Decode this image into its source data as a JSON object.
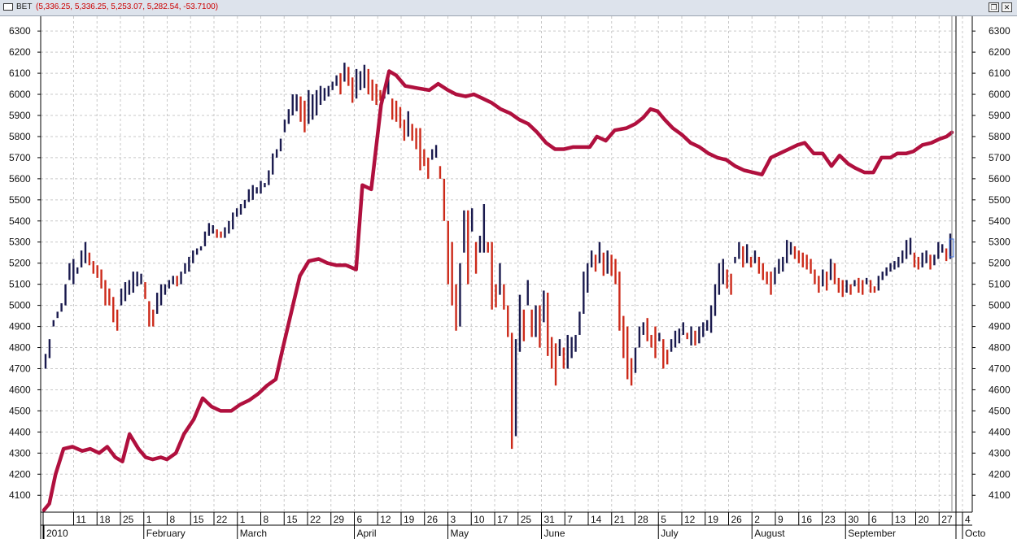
{
  "window": {
    "symbol": "BET",
    "ohlc_readout": "(5,336.25, 5,336.25, 5,253.07, 5,282.54, -53.7100)",
    "restore_glyph": "❐",
    "close_glyph": "✕"
  },
  "colors": {
    "up_bar": "#1a1a4e",
    "down_bar": "#cc2a1a",
    "average_line": "#b0103e",
    "grid": "#c8c8c8"
  },
  "chart_data": {
    "type": "ohlc_bar_with_line",
    "y_ticks": [
      4100,
      4200,
      4300,
      4400,
      4500,
      4600,
      4700,
      4800,
      4900,
      5000,
      5100,
      5200,
      5300,
      5400,
      5500,
      5600,
      5700,
      5800,
      5900,
      6000,
      6100,
      6200,
      6300
    ],
    "ylim": [
      4020,
      6370
    ],
    "grid": true,
    "x_ticks": [
      "11",
      "18",
      "25",
      "1",
      "8",
      "15",
      "22",
      "1",
      "8",
      "15",
      "22",
      "29",
      "6",
      "12",
      "19",
      "26",
      "3",
      "10",
      "17",
      "25",
      "31",
      "7",
      "14",
      "21",
      "28",
      "5",
      "12",
      "19",
      "26",
      "2",
      "9",
      "16",
      "23",
      "30",
      "6",
      "13",
      "20",
      "27",
      "4"
    ],
    "months": [
      "2010",
      "February",
      "March",
      "April",
      "May",
      "June",
      "July",
      "August",
      "September",
      "Octo"
    ],
    "bars": [
      [
        4700,
        4770
      ],
      [
        4750,
        4840
      ],
      [
        4900,
        4930
      ],
      [
        4940,
        4970
      ],
      [
        4970,
        5010
      ],
      [
        5000,
        5100
      ],
      [
        5120,
        5200
      ],
      [
        5100,
        5220
      ],
      [
        5150,
        5180
      ],
      [
        5180,
        5260
      ],
      [
        5200,
        5300
      ],
      [
        5190,
        5250
      ],
      [
        5150,
        5210
      ],
      [
        5130,
        5190
      ],
      [
        5080,
        5170
      ],
      [
        5000,
        5120
      ],
      [
        5000,
        5080
      ],
      [
        4920,
        5040
      ],
      [
        4880,
        4980
      ],
      [
        5000,
        5080
      ],
      [
        5020,
        5110
      ],
      [
        5050,
        5120
      ],
      [
        5060,
        5160
      ],
      [
        5090,
        5160
      ],
      [
        5100,
        5150
      ],
      [
        5030,
        5110
      ],
      [
        4900,
        5020
      ],
      [
        4900,
        4980
      ],
      [
        4960,
        5060
      ],
      [
        5000,
        5100
      ],
      [
        5050,
        5100
      ],
      [
        5080,
        5120
      ],
      [
        5100,
        5140
      ],
      [
        5090,
        5140
      ],
      [
        5100,
        5160
      ],
      [
        5150,
        5200
      ],
      [
        5160,
        5230
      ],
      [
        5200,
        5260
      ],
      [
        5240,
        5270
      ],
      [
        5260,
        5280
      ],
      [
        5280,
        5350
      ],
      [
        5330,
        5390
      ],
      [
        5340,
        5380
      ],
      [
        5320,
        5360
      ],
      [
        5320,
        5350
      ],
      [
        5320,
        5370
      ],
      [
        5340,
        5400
      ],
      [
        5360,
        5440
      ],
      [
        5420,
        5460
      ],
      [
        5430,
        5480
      ],
      [
        5460,
        5500
      ],
      [
        5490,
        5550
      ],
      [
        5500,
        5570
      ],
      [
        5530,
        5560
      ],
      [
        5530,
        5590
      ],
      [
        5560,
        5580
      ],
      [
        5570,
        5640
      ],
      [
        5620,
        5720
      ],
      [
        5700,
        5740
      ],
      [
        5730,
        5790
      ],
      [
        5820,
        5880
      ],
      [
        5860,
        5930
      ],
      [
        5900,
        6000
      ],
      [
        5920,
        6000
      ],
      [
        5870,
        5990
      ],
      [
        5820,
        5970
      ],
      [
        5860,
        6020
      ],
      [
        5880,
        6000
      ],
      [
        5900,
        6020
      ],
      [
        5950,
        6040
      ],
      [
        5970,
        6030
      ],
      [
        5990,
        6040
      ],
      [
        6020,
        6060
      ],
      [
        6040,
        6090
      ],
      [
        6000,
        6100
      ],
      [
        6060,
        6150
      ],
      [
        6040,
        6130
      ],
      [
        5960,
        6080
      ],
      [
        5980,
        6120
      ],
      [
        6020,
        6110
      ],
      [
        6030,
        6140
      ],
      [
        6000,
        6120
      ],
      [
        5970,
        6070
      ],
      [
        5950,
        6050
      ],
      [
        5970,
        6020
      ],
      [
        5980,
        6020
      ],
      [
        6000,
        6110
      ],
      [
        5880,
        5980
      ],
      [
        5870,
        5970
      ],
      [
        5840,
        5940
      ],
      [
        5780,
        5880
      ],
      [
        5800,
        5920
      ],
      [
        5780,
        5860
      ],
      [
        5740,
        5840
      ],
      [
        5640,
        5840
      ],
      [
        5660,
        5740
      ],
      [
        5600,
        5700
      ],
      [
        5690,
        5740
      ],
      [
        5700,
        5760
      ],
      [
        5600,
        5660
      ],
      [
        5400,
        5600
      ],
      [
        5100,
        5400
      ],
      [
        5000,
        5300
      ],
      [
        4880,
        5100
      ],
      [
        4900,
        5200
      ],
      [
        5250,
        5450
      ],
      [
        5100,
        5450
      ],
      [
        5350,
        5460
      ],
      [
        5150,
        5300
      ],
      [
        5250,
        5330
      ],
      [
        5250,
        5480
      ],
      [
        5250,
        5300
      ],
      [
        4980,
        5300
      ],
      [
        4990,
        5100
      ],
      [
        5050,
        5200
      ],
      [
        4980,
        5100
      ],
      [
        4850,
        5000
      ],
      [
        4320,
        4870
      ],
      [
        4380,
        4840
      ],
      [
        4780,
        5050
      ],
      [
        4830,
        4980
      ],
      [
        5000,
        5120
      ],
      [
        4850,
        4980
      ],
      [
        4850,
        5000
      ],
      [
        4800,
        5000
      ],
      [
        4920,
        5070
      ],
      [
        4760,
        5060
      ],
      [
        4700,
        4850
      ],
      [
        4620,
        4820
      ],
      [
        4760,
        4840
      ],
      [
        4700,
        4800
      ],
      [
        4700,
        4860
      ],
      [
        4750,
        4850
      ],
      [
        4780,
        4860
      ],
      [
        4860,
        4970
      ],
      [
        4960,
        5160
      ],
      [
        5060,
        5200
      ],
      [
        5180,
        5260
      ],
      [
        5160,
        5240
      ],
      [
        5200,
        5300
      ],
      [
        5140,
        5250
      ],
      [
        5150,
        5260
      ],
      [
        5140,
        5240
      ],
      [
        5100,
        5220
      ],
      [
        4880,
        5160
      ],
      [
        4750,
        4950
      ],
      [
        4650,
        4900
      ],
      [
        4620,
        4750
      ],
      [
        4680,
        4800
      ],
      [
        4800,
        4900
      ],
      [
        4860,
        4920
      ],
      [
        4830,
        4940
      ],
      [
        4800,
        4860
      ],
      [
        4750,
        4900
      ],
      [
        4830,
        4870
      ],
      [
        4700,
        4840
      ],
      [
        4720,
        4790
      ],
      [
        4780,
        4840
      ],
      [
        4800,
        4880
      ],
      [
        4820,
        4890
      ],
      [
        4860,
        4920
      ],
      [
        4840,
        4870
      ],
      [
        4810,
        4900
      ],
      [
        4810,
        4880
      ],
      [
        4820,
        4900
      ],
      [
        4850,
        4920
      ],
      [
        4880,
        4930
      ],
      [
        4870,
        5000
      ],
      [
        4950,
        5100
      ],
      [
        5050,
        5200
      ],
      [
        5100,
        5220
      ],
      [
        5080,
        5170
      ],
      [
        5050,
        5150
      ],
      [
        5200,
        5230
      ],
      [
        5220,
        5300
      ],
      [
        5180,
        5280
      ],
      [
        5200,
        5290
      ],
      [
        5180,
        5230
      ],
      [
        5200,
        5260
      ],
      [
        5150,
        5230
      ],
      [
        5120,
        5200
      ],
      [
        5100,
        5160
      ],
      [
        5050,
        5160
      ],
      [
        5100,
        5180
      ],
      [
        5150,
        5220
      ],
      [
        5160,
        5230
      ],
      [
        5200,
        5310
      ],
      [
        5240,
        5300
      ],
      [
        5220,
        5280
      ],
      [
        5200,
        5260
      ],
      [
        5180,
        5250
      ],
      [
        5170,
        5240
      ],
      [
        5150,
        5220
      ],
      [
        5100,
        5170
      ],
      [
        5060,
        5140
      ],
      [
        5090,
        5170
      ],
      [
        5070,
        5160
      ],
      [
        5120,
        5220
      ],
      [
        5100,
        5200
      ],
      [
        5060,
        5130
      ],
      [
        5040,
        5120
      ],
      [
        5060,
        5120
      ],
      [
        5050,
        5100
      ],
      [
        5090,
        5120
      ],
      [
        5060,
        5130
      ],
      [
        5050,
        5120
      ],
      [
        5100,
        5130
      ],
      [
        5060,
        5120
      ],
      [
        5060,
        5090
      ],
      [
        5070,
        5140
      ],
      [
        5120,
        5160
      ],
      [
        5140,
        5180
      ],
      [
        5160,
        5200
      ],
      [
        5170,
        5210
      ],
      [
        5180,
        5230
      ],
      [
        5200,
        5260
      ],
      [
        5220,
        5310
      ],
      [
        5240,
        5320
      ],
      [
        5180,
        5250
      ],
      [
        5170,
        5230
      ],
      [
        5180,
        5250
      ],
      [
        5200,
        5260
      ],
      [
        5170,
        5240
      ],
      [
        5190,
        5240
      ],
      [
        5220,
        5300
      ],
      [
        5250,
        5290
      ],
      [
        5210,
        5270
      ],
      [
        5220,
        5340
      ]
    ],
    "line": [
      [
        0,
        4030
      ],
      [
        0.6,
        4060
      ],
      [
        1.3,
        4200
      ],
      [
        2.2,
        4320
      ],
      [
        3.2,
        4330
      ],
      [
        4.3,
        4310
      ],
      [
        5.2,
        4320
      ],
      [
        6.2,
        4300
      ],
      [
        7.1,
        4330
      ],
      [
        8,
        4280
      ],
      [
        8.8,
        4260
      ],
      [
        9.6,
        4390
      ],
      [
        10.6,
        4320
      ],
      [
        11.4,
        4280
      ],
      [
        12.2,
        4270
      ],
      [
        13.1,
        4280
      ],
      [
        13.8,
        4270
      ],
      [
        14.8,
        4300
      ],
      [
        15.7,
        4390
      ],
      [
        16.8,
        4460
      ],
      [
        17.8,
        4560
      ],
      [
        18.8,
        4520
      ],
      [
        19.8,
        4500
      ],
      [
        21,
        4500
      ],
      [
        22,
        4530
      ],
      [
        23,
        4550
      ],
      [
        24,
        4580
      ],
      [
        25,
        4620
      ],
      [
        26,
        4650
      ],
      [
        26.8,
        4800
      ],
      [
        27.8,
        4980
      ],
      [
        28.7,
        5140
      ],
      [
        29.7,
        5210
      ],
      [
        30.8,
        5220
      ],
      [
        31.8,
        5200
      ],
      [
        32.8,
        5190
      ],
      [
        33.9,
        5190
      ],
      [
        35,
        5170
      ],
      [
        35.7,
        5570
      ],
      [
        36.7,
        5550
      ],
      [
        37.8,
        5950
      ],
      [
        38.7,
        6110
      ],
      [
        39.5,
        6090
      ],
      [
        40.5,
        6040
      ],
      [
        41.8,
        6030
      ],
      [
        43.2,
        6020
      ],
      [
        44.2,
        6050
      ],
      [
        45.3,
        6020
      ],
      [
        46.2,
        6000
      ],
      [
        47.3,
        5990
      ],
      [
        48.2,
        6000
      ],
      [
        49.2,
        5980
      ],
      [
        50.2,
        5960
      ],
      [
        51.2,
        5930
      ],
      [
        52.3,
        5910
      ],
      [
        53.3,
        5880
      ],
      [
        54.3,
        5860
      ],
      [
        55.3,
        5820
      ],
      [
        56.3,
        5770
      ],
      [
        57.3,
        5740
      ],
      [
        58.3,
        5740
      ],
      [
        59.3,
        5750
      ],
      [
        60.2,
        5750
      ],
      [
        61.2,
        5750
      ],
      [
        62,
        5800
      ],
      [
        63,
        5780
      ],
      [
        64,
        5830
      ],
      [
        65.3,
        5840
      ],
      [
        66.3,
        5860
      ],
      [
        67.2,
        5890
      ],
      [
        68,
        5930
      ],
      [
        68.8,
        5920
      ],
      [
        69.6,
        5880
      ],
      [
        70.5,
        5840
      ],
      [
        71.5,
        5810
      ],
      [
        72.5,
        5770
      ],
      [
        73.5,
        5750
      ],
      [
        74.5,
        5720
      ],
      [
        75.5,
        5700
      ],
      [
        76.5,
        5690
      ],
      [
        77.5,
        5660
      ],
      [
        78.5,
        5640
      ],
      [
        79.5,
        5630
      ],
      [
        80.5,
        5620
      ],
      [
        81.5,
        5700
      ],
      [
        82.5,
        5720
      ],
      [
        83.5,
        5740
      ],
      [
        84.5,
        5760
      ],
      [
        85.3,
        5770
      ],
      [
        86.3,
        5720
      ],
      [
        87.3,
        5720
      ],
      [
        88.3,
        5660
      ],
      [
        89.2,
        5710
      ],
      [
        90.2,
        5670
      ],
      [
        91,
        5650
      ],
      [
        92,
        5630
      ],
      [
        93,
        5630
      ],
      [
        93.9,
        5700
      ],
      [
        94.9,
        5700
      ],
      [
        95.7,
        5720
      ],
      [
        96.7,
        5720
      ],
      [
        97.5,
        5730
      ],
      [
        98.5,
        5760
      ],
      [
        99.5,
        5770
      ],
      [
        100.5,
        5790
      ],
      [
        101.2,
        5800
      ],
      [
        101.8,
        5820
      ]
    ]
  }
}
